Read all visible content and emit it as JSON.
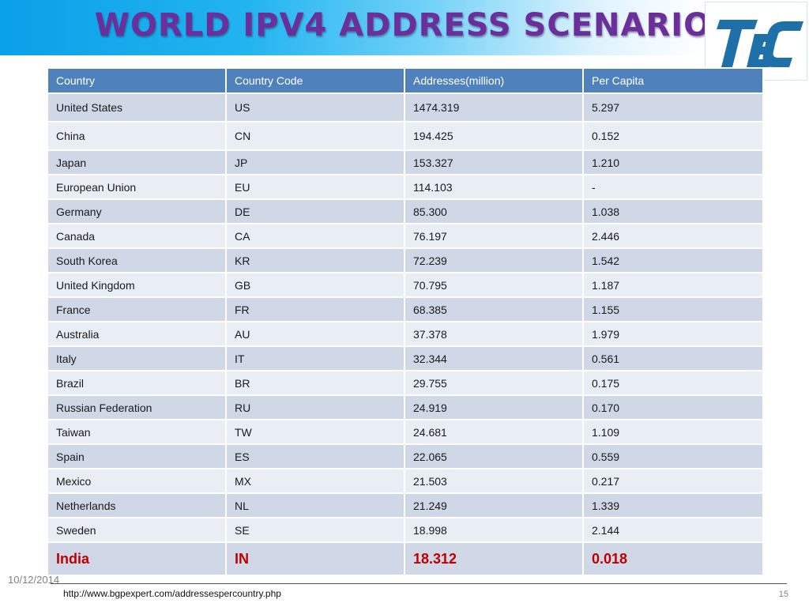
{
  "slide": {
    "title": "WORLD IPV4 ADDRESS SCENARIO",
    "date": "10/12/2014",
    "source": "http://www.bgpexpert.com/addressespercountry.php",
    "page_number": "15"
  },
  "colors": {
    "title": "#6a2f9b",
    "header_band": "#0aa0e8",
    "table_header": "#4f81bd",
    "row_odd": "#d0d8e8",
    "row_even": "#e9edf4",
    "highlight": "#c00000",
    "logo": "#1f6fa8"
  },
  "logo": {
    "icon": "tec-logo-icon"
  },
  "table": {
    "headers": [
      "Country",
      "Country Code",
      "Addresses(million)",
      "Per Capita"
    ],
    "rows": [
      [
        "United States",
        "US",
        "1474.319",
        "5.297"
      ],
      [
        "China",
        "CN",
        "194.425",
        "0.152"
      ],
      [
        "Japan",
        "JP",
        "153.327",
        "1.210"
      ],
      [
        "European Union",
        "EU",
        "114.103",
        "-"
      ],
      [
        "Germany",
        "DE",
        "85.300",
        "1.038"
      ],
      [
        "Canada",
        "CA",
        "76.197",
        "2.446"
      ],
      [
        "South Korea",
        "KR",
        "72.239",
        "1.542"
      ],
      [
        "United Kingdom",
        "GB",
        "70.795",
        "1.187"
      ],
      [
        "France",
        "FR",
        "68.385",
        "1.155"
      ],
      [
        "Australia",
        "AU",
        "37.378",
        "1.979"
      ],
      [
        "Italy",
        "IT",
        "32.344",
        "0.561"
      ],
      [
        "Brazil",
        "BR",
        "29.755",
        "0.175"
      ],
      [
        "Russian Federation",
        "RU",
        "24.919",
        "0.170"
      ],
      [
        "Taiwan",
        "TW",
        "24.681",
        "1.109"
      ],
      [
        "Spain",
        "ES",
        "22.065",
        "0.559"
      ],
      [
        "Mexico",
        "MX",
        "21.503",
        "0.217"
      ],
      [
        "Netherlands",
        "NL",
        "21.249",
        "1.339"
      ],
      [
        "Sweden",
        "SE",
        "18.998",
        "2.144"
      ],
      [
        "India",
        "IN",
        "18.312",
        "0.018"
      ]
    ],
    "highlight_row": "India"
  }
}
